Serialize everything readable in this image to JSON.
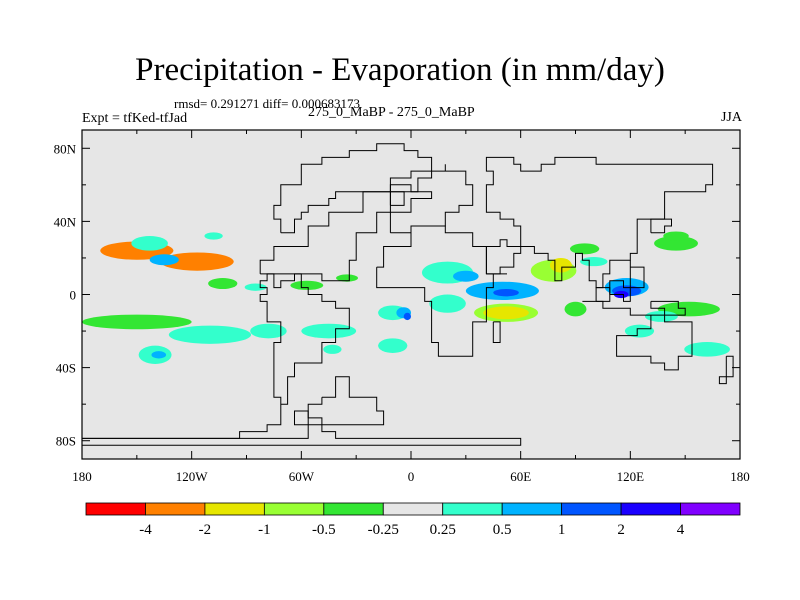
{
  "chart_data": {
    "type": "heatmap",
    "title": "Precipitation - Evaporation (in mm/day)",
    "stats": "rmsd= 0.291271 diff= 0.000683173",
    "expt_line": "Expt = tfKed-tfJad",
    "experiments": "275_0_MaBP - 275_0_MaBP",
    "season": "JJA",
    "xlabel": "",
    "ylabel": "",
    "xlim": [
      -180,
      180
    ],
    "ylim": [
      -90,
      90
    ],
    "x_ticks": [
      {
        "value": -180,
        "label": "180"
      },
      {
        "value": -120,
        "label": "120W"
      },
      {
        "value": -60,
        "label": "60W"
      },
      {
        "value": 0,
        "label": "0"
      },
      {
        "value": 60,
        "label": "60E"
      },
      {
        "value": 120,
        "label": "120E"
      },
      {
        "value": 180,
        "label": "180"
      }
    ],
    "y_ticks": [
      {
        "value": 80,
        "label": "80N"
      },
      {
        "value": 40,
        "label": "40N"
      },
      {
        "value": 0,
        "label": "0"
      },
      {
        "value": -40,
        "label": "40S"
      },
      {
        "value": -80,
        "label": "80S"
      }
    ],
    "background_color": "#e6e6e6",
    "colorbar": {
      "levels": [
        "-4",
        "-2",
        "-1",
        "-0.5",
        "-0.25",
        "0.25",
        "0.5",
        "1",
        "2",
        "4"
      ],
      "colors": [
        "#ff0000",
        "#ff8000",
        "#e6e600",
        "#99ff33",
        "#33e633",
        "#e6e6e6",
        "#33ffcc",
        "#00b3ff",
        "#0055ff",
        "#1a00ff",
        "#8000ff"
      ]
    },
    "contour_regions": [
      {
        "level": 1,
        "center": [
          -150,
          24
        ],
        "size": [
          40,
          10
        ],
        "note": "band N Pacific"
      },
      {
        "level": 1,
        "center": [
          -117,
          18
        ],
        "size": [
          40,
          10
        ]
      },
      {
        "level": 6,
        "center": [
          -143,
          28
        ],
        "size": [
          20,
          8
        ]
      },
      {
        "level": 7,
        "center": [
          -135,
          19
        ],
        "size": [
          16,
          6
        ]
      },
      {
        "level": 6,
        "center": [
          -108,
          32
        ],
        "size": [
          10,
          4
        ]
      },
      {
        "level": 4,
        "center": [
          -103,
          6
        ],
        "size": [
          16,
          6
        ]
      },
      {
        "level": 4,
        "center": [
          -57,
          5
        ],
        "size": [
          18,
          5
        ]
      },
      {
        "level": 4,
        "center": [
          -35,
          9
        ],
        "size": [
          12,
          4
        ]
      },
      {
        "level": 6,
        "center": [
          -85,
          4
        ],
        "size": [
          12,
          4
        ]
      },
      {
        "level": 4,
        "center": [
          -150,
          -15
        ],
        "size": [
          60,
          8
        ]
      },
      {
        "level": 6,
        "center": [
          -110,
          -22
        ],
        "size": [
          45,
          10
        ]
      },
      {
        "level": 6,
        "center": [
          -78,
          -20
        ],
        "size": [
          20,
          8
        ]
      },
      {
        "level": 6,
        "center": [
          -140,
          -33
        ],
        "size": [
          18,
          10
        ]
      },
      {
        "level": 7,
        "center": [
          -138,
          -33
        ],
        "size": [
          8,
          4
        ]
      },
      {
        "level": 6,
        "center": [
          -45,
          -20
        ],
        "size": [
          30,
          8
        ]
      },
      {
        "level": 6,
        "center": [
          -10,
          -10
        ],
        "size": [
          16,
          8
        ]
      },
      {
        "level": 7,
        "center": [
          -4,
          -10
        ],
        "size": [
          8,
          6
        ]
      },
      {
        "level": 8,
        "center": [
          -2,
          -12
        ],
        "size": [
          4,
          4
        ]
      },
      {
        "level": 6,
        "center": [
          -10,
          -28
        ],
        "size": [
          16,
          8
        ]
      },
      {
        "level": 6,
        "center": [
          20,
          12
        ],
        "size": [
          28,
          12
        ]
      },
      {
        "level": 7,
        "center": [
          30,
          10
        ],
        "size": [
          14,
          6
        ]
      },
      {
        "level": 7,
        "center": [
          50,
          2
        ],
        "size": [
          40,
          10
        ]
      },
      {
        "level": 8,
        "center": [
          52,
          1
        ],
        "size": [
          14,
          4
        ]
      },
      {
        "level": 6,
        "center": [
          20,
          -5
        ],
        "size": [
          20,
          10
        ]
      },
      {
        "level": 3,
        "center": [
          52,
          -10
        ],
        "size": [
          35,
          10
        ]
      },
      {
        "level": 2,
        "center": [
          52,
          -10
        ],
        "size": [
          25,
          7
        ]
      },
      {
        "level": 3,
        "center": [
          78,
          13
        ],
        "size": [
          25,
          12
        ]
      },
      {
        "level": 2,
        "center": [
          82,
          16
        ],
        "size": [
          12,
          8
        ]
      },
      {
        "level": 4,
        "center": [
          95,
          25
        ],
        "size": [
          16,
          6
        ]
      },
      {
        "level": 6,
        "center": [
          100,
          18
        ],
        "size": [
          15,
          5
        ]
      },
      {
        "level": 7,
        "center": [
          118,
          4
        ],
        "size": [
          24,
          10
        ]
      },
      {
        "level": 8,
        "center": [
          118,
          2
        ],
        "size": [
          16,
          6
        ]
      },
      {
        "level": 9,
        "center": [
          115,
          0
        ],
        "size": [
          8,
          4
        ]
      },
      {
        "level": 4,
        "center": [
          90,
          -8
        ],
        "size": [
          12,
          8
        ]
      },
      {
        "level": 6,
        "center": [
          125,
          -20
        ],
        "size": [
          16,
          7
        ]
      },
      {
        "level": 4,
        "center": [
          145,
          28
        ],
        "size": [
          24,
          8
        ]
      },
      {
        "level": 4,
        "center": [
          152,
          -8
        ],
        "size": [
          34,
          8
        ]
      },
      {
        "level": 6,
        "center": [
          137,
          -12
        ],
        "size": [
          18,
          6
        ]
      },
      {
        "level": 6,
        "center": [
          162,
          -30
        ],
        "size": [
          25,
          8
        ]
      },
      {
        "level": 4,
        "center": [
          145,
          32
        ],
        "size": [
          14,
          5
        ]
      },
      {
        "level": 6,
        "center": [
          -43,
          -30
        ],
        "size": [
          10,
          5
        ]
      }
    ],
    "coastline_outlines": [
      [
        [
          -180,
          -80
        ],
        [
          -70,
          -80
        ],
        [
          -70,
          -78
        ],
        [
          -55,
          -78
        ],
        [
          -55,
          -73
        ],
        [
          -65,
          -73
        ],
        [
          -65,
          -65
        ],
        [
          -58,
          -65
        ],
        [
          -55,
          -70
        ],
        [
          -50,
          -75
        ],
        [
          -40,
          -78
        ],
        [
          -30,
          -78
        ],
        [
          -30,
          -80
        ],
        [
          -15,
          -80
        ],
        [
          -15,
          -78
        ],
        [
          0,
          -78
        ],
        [
          0,
          -80
        ],
        [
          60,
          -80
        ],
        [
          60,
          -82
        ],
        [
          -180,
          -82
        ]
      ],
      [
        [
          -180,
          -77
        ],
        [
          -95,
          -77
        ],
        [
          -95,
          -74
        ],
        [
          -80,
          -74
        ],
        [
          -80,
          -70
        ],
        [
          -73,
          -70
        ],
        [
          -73,
          -60
        ],
        [
          -68,
          -55
        ],
        [
          -68,
          -45
        ],
        [
          -62,
          -38
        ],
        [
          -48,
          -28
        ],
        [
          -40,
          -20
        ],
        [
          -35,
          -8
        ],
        [
          -40,
          -2
        ],
        [
          -50,
          0
        ],
        [
          -55,
          5
        ],
        [
          -60,
          10
        ],
        [
          -75,
          12
        ],
        [
          -80,
          8
        ],
        [
          -82,
          5
        ],
        [
          -80,
          0
        ],
        [
          -82,
          -5
        ],
        [
          -78,
          -15
        ],
        [
          -73,
          -25
        ],
        [
          -75,
          -40
        ],
        [
          -75,
          -55
        ],
        [
          -70,
          -60
        ]
      ],
      [
        [
          -48,
          -55
        ],
        [
          -40,
          -45
        ],
        [
          -35,
          -55
        ],
        [
          -25,
          -55
        ],
        [
          -18,
          -62
        ],
        [
          -15,
          -70
        ],
        [
          -28,
          -72
        ],
        [
          -40,
          -70
        ],
        [
          -50,
          -68
        ],
        [
          -55,
          -60
        ],
        [
          -48,
          -55
        ]
      ],
      [
        [
          -84,
          12
        ],
        [
          -80,
          10
        ],
        [
          -76,
          5
        ],
        [
          -70,
          8
        ],
        [
          -65,
          10
        ],
        [
          -50,
          8
        ],
        [
          -35,
          20
        ],
        [
          -30,
          35
        ],
        [
          -20,
          45
        ],
        [
          0,
          52
        ],
        [
          10,
          58
        ],
        [
          0,
          60
        ],
        [
          -10,
          55
        ],
        [
          -25,
          45
        ],
        [
          -45,
          36
        ],
        [
          -55,
          28
        ],
        [
          -75,
          20
        ],
        [
          -84,
          12
        ]
      ],
      [
        [
          -70,
          35
        ],
        [
          -65,
          40
        ],
        [
          -60,
          45
        ],
        [
          -55,
          48
        ],
        [
          -45,
          52
        ],
        [
          -40,
          58
        ],
        [
          -10,
          62
        ],
        [
          0,
          68
        ],
        [
          10,
          75
        ],
        [
          5,
          80
        ],
        [
          -5,
          82
        ],
        [
          -20,
          80
        ],
        [
          -35,
          75
        ],
        [
          -50,
          70
        ],
        [
          -60,
          60
        ],
        [
          -70,
          50
        ],
        [
          -75,
          40
        ],
        [
          -70,
          35
        ]
      ],
      [
        [
          -10,
          35
        ],
        [
          0,
          38
        ],
        [
          10,
          38
        ],
        [
          18,
          45
        ],
        [
          28,
          50
        ],
        [
          35,
          60
        ],
        [
          30,
          68
        ],
        [
          20,
          72
        ],
        [
          20,
          68
        ],
        [
          10,
          62
        ],
        [
          5,
          58
        ],
        [
          -5,
          55
        ],
        [
          -10,
          45
        ],
        [
          -10,
          35
        ]
      ],
      [
        [
          -18,
          15
        ],
        [
          -15,
          28
        ],
        [
          0,
          36
        ],
        [
          10,
          37
        ],
        [
          20,
          32
        ],
        [
          30,
          32
        ],
        [
          35,
          28
        ],
        [
          43,
          12
        ],
        [
          51,
          12
        ],
        [
          45,
          5
        ],
        [
          40,
          -5
        ],
        [
          40,
          -15
        ],
        [
          35,
          -25
        ],
        [
          32,
          -32
        ],
        [
          20,
          -35
        ],
        [
          15,
          -25
        ],
        [
          12,
          -15
        ],
        [
          10,
          -5
        ],
        [
          8,
          5
        ],
        [
          0,
          5
        ],
        [
          -8,
          5
        ],
        [
          -18,
          15
        ]
      ],
      [
        [
          43,
          12
        ],
        [
          50,
          15
        ],
        [
          55,
          22
        ],
        [
          60,
          25
        ],
        [
          52,
          30
        ],
        [
          48,
          28
        ],
        [
          43,
          20
        ],
        [
          43,
          12
        ]
      ],
      [
        [
          60,
          25
        ],
        [
          68,
          24
        ],
        [
          75,
          20
        ],
        [
          78,
          8
        ],
        [
          82,
          15
        ],
        [
          90,
          22
        ],
        [
          92,
          20
        ],
        [
          97,
          16
        ],
        [
          98,
          8
        ],
        [
          103,
          2
        ],
        [
          104,
          10
        ],
        [
          108,
          12
        ],
        [
          108,
          20
        ],
        [
          120,
          24
        ],
        [
          122,
          30
        ],
        [
          122,
          40
        ],
        [
          130,
          42
        ],
        [
          140,
          48
        ],
        [
          140,
          55
        ],
        [
          160,
          60
        ],
        [
          165,
          70
        ],
        [
          140,
          72
        ],
        [
          120,
          73
        ],
        [
          100,
          76
        ],
        [
          80,
          73
        ],
        [
          70,
          68
        ],
        [
          60,
          70
        ],
        [
          55,
          75
        ],
        [
          40,
          68
        ],
        [
          45,
          60
        ],
        [
          40,
          55
        ],
        [
          40,
          45
        ],
        [
          50,
          40
        ],
        [
          55,
          37
        ],
        [
          60,
          25
        ]
      ],
      [
        [
          95,
          -5
        ],
        [
          105,
          -6
        ],
        [
          115,
          -8
        ],
        [
          120,
          -10
        ],
        [
          130,
          -12
        ],
        [
          140,
          -15
        ],
        [
          150,
          -15
        ],
        [
          155,
          -25
        ],
        [
          152,
          -35
        ],
        [
          148,
          -40
        ],
        [
          140,
          -38
        ],
        [
          130,
          -32
        ],
        [
          117,
          -35
        ],
        [
          113,
          -22
        ],
        [
          122,
          -18
        ],
        [
          130,
          -12
        ]
      ],
      [
        [
          130,
          -2
        ],
        [
          138,
          -2
        ],
        [
          146,
          -6
        ],
        [
          150,
          -10
        ],
        [
          140,
          -9
        ],
        [
          132,
          -5
        ],
        [
          130,
          -2
        ]
      ],
      [
        [
          100,
          -3
        ],
        [
          105,
          -5
        ],
        [
          110,
          -2
        ],
        [
          110,
          2
        ],
        [
          104,
          2
        ],
        [
          100,
          -3
        ]
      ],
      [
        [
          110,
          0
        ],
        [
          117,
          -3
        ],
        [
          119,
          3
        ],
        [
          116,
          7
        ],
        [
          110,
          3
        ],
        [
          110,
          0
        ]
      ],
      [
        [
          120,
          5
        ],
        [
          126,
          7
        ],
        [
          126,
          15
        ],
        [
          120,
          18
        ],
        [
          120,
          5
        ]
      ],
      [
        [
          130,
          32
        ],
        [
          135,
          34
        ],
        [
          140,
          36
        ],
        [
          142,
          42
        ],
        [
          138,
          40
        ],
        [
          132,
          34
        ],
        [
          130,
          32
        ]
      ],
      [
        [
          172,
          -35
        ],
        [
          178,
          -38
        ],
        [
          176,
          -45
        ],
        [
          168,
          -47
        ],
        [
          172,
          -42
        ],
        [
          172,
          -35
        ]
      ],
      [
        [
          44,
          -14
        ],
        [
          50,
          -15
        ],
        [
          49,
          -25
        ],
        [
          45,
          -25
        ],
        [
          44,
          -14
        ]
      ],
      [
        [
          -10,
          50
        ],
        [
          -5,
          52
        ],
        [
          -3,
          58
        ],
        [
          -7,
          58
        ],
        [
          -10,
          54
        ],
        [
          -10,
          50
        ]
      ]
    ]
  }
}
